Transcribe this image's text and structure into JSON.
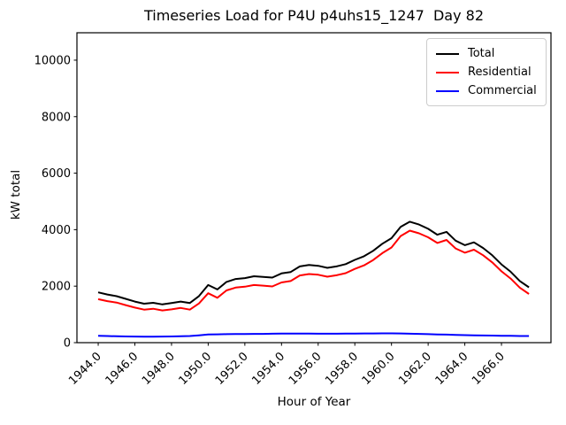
{
  "chart_data": {
    "type": "line",
    "title": "Timeseries Load for P4U p4uhs15_1247  Day 82",
    "xlabel": "Hour of Year",
    "ylabel": "kW total",
    "x": [
      1944.0,
      1944.5,
      1945.0,
      1945.5,
      1946.0,
      1946.5,
      1947.0,
      1947.5,
      1948.0,
      1948.5,
      1949.0,
      1949.5,
      1950.0,
      1950.5,
      1951.0,
      1951.5,
      1952.0,
      1952.5,
      1953.0,
      1953.5,
      1954.0,
      1954.5,
      1955.0,
      1955.5,
      1956.0,
      1956.5,
      1957.0,
      1957.5,
      1958.0,
      1958.5,
      1959.0,
      1959.5,
      1960.0,
      1960.5,
      1961.0,
      1961.5,
      1962.0,
      1962.5,
      1963.0,
      1963.5,
      1964.0,
      1964.5,
      1965.0,
      1965.5,
      1966.0,
      1966.5,
      1967.0,
      1967.5
    ],
    "series": [
      {
        "name": "Total",
        "color": "#000000",
        "values": [
          1780,
          1705,
          1645,
          1550,
          1455,
          1380,
          1410,
          1355,
          1400,
          1455,
          1405,
          1650,
          2040,
          1885,
          2150,
          2255,
          2285,
          2350,
          2330,
          2305,
          2450,
          2500,
          2700,
          2750,
          2720,
          2650,
          2700,
          2780,
          2930,
          3060,
          3250,
          3500,
          3700,
          4100,
          4280,
          4180,
          4030,
          3820,
          3920,
          3610,
          3450,
          3550,
          3350,
          3090,
          2770,
          2510,
          2180,
          1960
        ]
      },
      {
        "name": "Residential",
        "color": "#ff0000",
        "values": [
          1540,
          1470,
          1420,
          1330,
          1240,
          1170,
          1200,
          1140,
          1180,
          1230,
          1170,
          1390,
          1750,
          1590,
          1850,
          1950,
          1980,
          2040,
          2020,
          1990,
          2130,
          2180,
          2380,
          2430,
          2405,
          2335,
          2385,
          2460,
          2610,
          2735,
          2925,
          3170,
          3370,
          3775,
          3965,
          3870,
          3730,
          3530,
          3635,
          3335,
          3185,
          3290,
          3095,
          2840,
          2525,
          2270,
          1945,
          1725
        ]
      },
      {
        "name": "Commercial",
        "color": "#0000ff",
        "values": [
          240,
          235,
          225,
          220,
          215,
          210,
          210,
          215,
          220,
          225,
          235,
          260,
          290,
          295,
          300,
          305,
          305,
          310,
          310,
          315,
          320,
          320,
          320,
          320,
          315,
          315,
          315,
          320,
          320,
          325,
          325,
          330,
          330,
          325,
          315,
          310,
          300,
          290,
          285,
          275,
          265,
          260,
          255,
          250,
          245,
          240,
          235,
          235
        ]
      }
    ],
    "xticks": [
      1944,
      1946,
      1948,
      1950,
      1952,
      1954,
      1956,
      1958,
      1960,
      1962,
      1964,
      1966
    ],
    "xtick_labels": [
      "1944.0",
      "1946.0",
      "1948.0",
      "1950.0",
      "1952.0",
      "1954.0",
      "1956.0",
      "1958.0",
      "1960.0",
      "1962.0",
      "1964.0",
      "1966.0"
    ],
    "yticks": [
      0,
      2000,
      4000,
      6000,
      8000,
      10000
    ],
    "ytick_labels": [
      "0",
      "2000",
      "4000",
      "6000",
      "8000",
      "10000"
    ],
    "xlim": [
      1942.84,
      1968.7
    ],
    "ylim": [
      0,
      10970
    ],
    "x_tick_rotation": 45,
    "grid": false,
    "legend": {
      "position": "upper right",
      "entries": [
        "Total",
        "Residential",
        "Commercial"
      ]
    }
  }
}
